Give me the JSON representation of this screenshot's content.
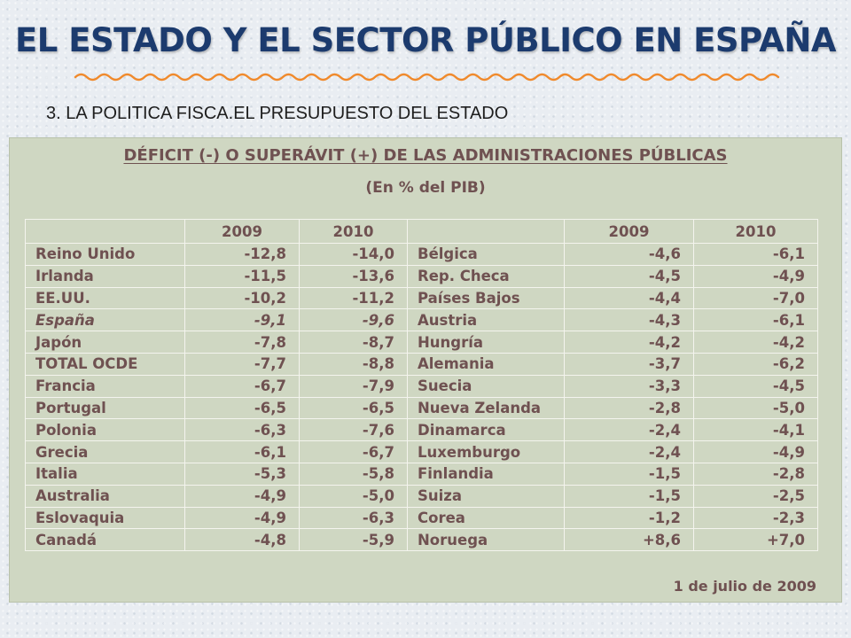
{
  "slide": {
    "title": "EL ESTADO Y EL SECTOR PÚBLICO EN ESPAÑA",
    "subtitle": "3. LA POLITICA FISCA.EL PRESUPUESTO DEL ESTADO",
    "accent_color": "#1c3b6e",
    "underline_color": "#f08a2c"
  },
  "table": {
    "title": "DÉFICIT (-) O SUPERÁVIT (+) DE LAS ADMINISTRACIONES PÚBLICAS",
    "unit": "(En % del PIB)",
    "headers": [
      "",
      "2009",
      "2010",
      "",
      "2009",
      "2010"
    ],
    "rows": [
      {
        "country_left": "Reino Unido",
        "left_2009": "-12,8",
        "left_2010": "-14,0",
        "country_right": "Bélgica",
        "right_2009": "-4,6",
        "right_2010": "-6,1"
      },
      {
        "country_left": "Irlanda",
        "left_2009": "-11,5",
        "left_2010": "-13,6",
        "country_right": "Rep. Checa",
        "right_2009": "-4,5",
        "right_2010": "-4,9"
      },
      {
        "country_left": "EE.UU.",
        "left_2009": "-10,2",
        "left_2010": "-11,2",
        "country_right": "Países Bajos",
        "right_2009": "-4,4",
        "right_2010": "-7,0"
      },
      {
        "country_left": "España",
        "left_2009": "-9,1",
        "left_2010": "-9,6",
        "country_right": "Austria",
        "right_2009": "-4,3",
        "right_2010": "-6,1"
      },
      {
        "country_left": "Japón",
        "left_2009": "-7,8",
        "left_2010": "-8,7",
        "country_right": "Hungría",
        "right_2009": "-4,2",
        "right_2010": "-4,2"
      },
      {
        "country_left": "TOTAL OCDE",
        "left_2009": "-7,7",
        "left_2010": "-8,8",
        "country_right": "Alemania",
        "right_2009": "-3,7",
        "right_2010": "-6,2"
      },
      {
        "country_left": "Francia",
        "left_2009": "-6,7",
        "left_2010": "-7,9",
        "country_right": "Suecia",
        "right_2009": "-3,3",
        "right_2010": "-4,5"
      },
      {
        "country_left": "Portugal",
        "left_2009": "-6,5",
        "left_2010": "-6,5",
        "country_right": "Nueva Zelanda",
        "right_2009": "-2,8",
        "right_2010": "-5,0"
      },
      {
        "country_left": "Polonia",
        "left_2009": "-6,3",
        "left_2010": "-7,6",
        "country_right": "Dinamarca",
        "right_2009": "-2,4",
        "right_2010": "-4,1"
      },
      {
        "country_left": "Grecia",
        "left_2009": "-6,1",
        "left_2010": "-6,7",
        "country_right": "Luxemburgo",
        "right_2009": "-2,4",
        "right_2010": "-4,9"
      },
      {
        "country_left": "Italia",
        "left_2009": "-5,3",
        "left_2010": "-5,8",
        "country_right": "Finlandia",
        "right_2009": "-1,5",
        "right_2010": "-2,8"
      },
      {
        "country_left": "Australia",
        "left_2009": "-4,9",
        "left_2010": "-5,0",
        "country_right": "Suiza",
        "right_2009": "-1,5",
        "right_2010": "-2,5"
      },
      {
        "country_left": "Eslovaquia",
        "left_2009": "-4,9",
        "left_2010": "-6,3",
        "country_right": "Corea",
        "right_2009": "-1,2",
        "right_2010": "-2,3"
      },
      {
        "country_left": "Canadá",
        "left_2009": "-4,8",
        "left_2010": "-5,9",
        "country_right": "Noruega",
        "right_2009": "+8,6",
        "right_2010": "+7,0"
      }
    ],
    "date": "1 de julio de 2009",
    "text_color": "#6f5151",
    "background_color": "#cfd7c2"
  }
}
